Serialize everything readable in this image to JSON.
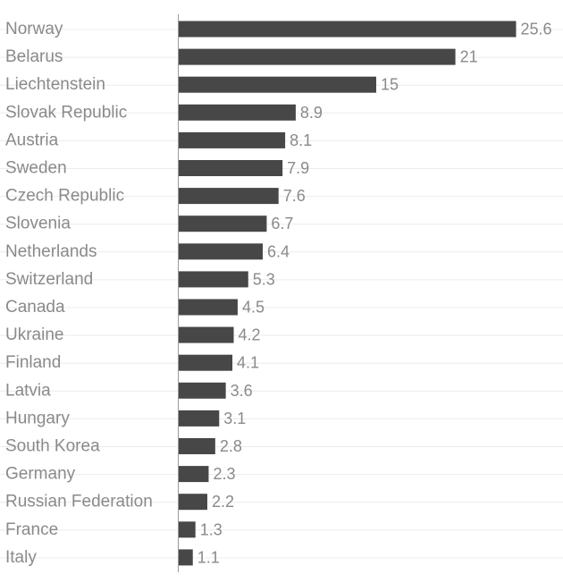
{
  "chart_data": {
    "type": "bar",
    "orientation": "horizontal",
    "title": "",
    "xlabel": "",
    "ylabel": "",
    "categories": [
      "Norway",
      "Belarus",
      "Liechtenstein",
      "Slovak Republic",
      "Austria",
      "Sweden",
      "Czech Republic",
      "Slovenia",
      "Netherlands",
      "Switzerland",
      "Canada",
      "Ukraine",
      "Finland",
      "Latvia",
      "Hungary",
      "South Korea",
      "Germany",
      "Russian Federation",
      "France",
      "Italy"
    ],
    "values": [
      25.6,
      21,
      15,
      8.9,
      8.1,
      7.9,
      7.6,
      6.7,
      6.4,
      5.3,
      4.5,
      4.2,
      4.1,
      3.6,
      3.1,
      2.8,
      2.3,
      2.2,
      1.3,
      1.1
    ],
    "value_labels": [
      "25.6",
      "21",
      "15",
      "8.9",
      "8.1",
      "7.9",
      "7.6",
      "6.7",
      "6.4",
      "5.3",
      "4.5",
      "4.2",
      "4.1",
      "3.6",
      "3.1",
      "2.8",
      "2.3",
      "2.2",
      "1.3",
      "1.1"
    ],
    "xlim": [
      0,
      25.6
    ],
    "grid": true,
    "legend": "none",
    "colors": {
      "bar": "#474747",
      "label": "#8a8a8a",
      "grid": "#ececec",
      "axis": "#9a9a9a"
    }
  }
}
